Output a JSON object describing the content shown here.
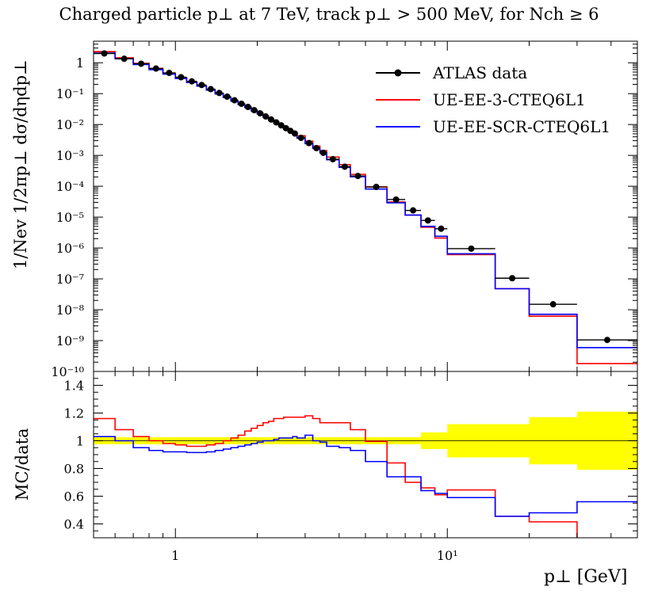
{
  "title": "Charged particle p⊥ at 7 TeV, track p⊥ > 500 MeV, for Nch ≥ 6",
  "chart_data": [
    {
      "type": "line",
      "panel": "main",
      "xscale": "log",
      "yscale": "log",
      "xlim": [
        0.5,
        50
      ],
      "ylim": [
        1e-10,
        5
      ],
      "ylabel": "1/Nev 1/2πp⊥ dσ/dηdp⊥",
      "ytick_labels": [
        "1",
        "10⁻¹",
        "10⁻²",
        "10⁻³",
        "10⁻⁴",
        "10⁻⁵",
        "10⁻⁶",
        "10⁻⁷",
        "10⁻⁸",
        "10⁻⁹",
        "10⁻¹⁰"
      ],
      "legend_position": "top-right",
      "bin_edges": [
        0.5,
        0.6,
        0.7,
        0.8,
        0.9,
        1.0,
        1.1,
        1.2,
        1.3,
        1.4,
        1.5,
        1.6,
        1.7,
        1.8,
        1.9,
        2.0,
        2.1,
        2.2,
        2.3,
        2.4,
        2.5,
        2.6,
        2.7,
        2.8,
        3.0,
        3.2,
        3.4,
        3.6,
        4.0,
        4.4,
        5.0,
        6.0,
        7.0,
        8.0,
        9.0,
        10.0,
        15.0,
        20.0,
        30.0,
        50.0
      ],
      "series": [
        {
          "name": "ATLAS data",
          "color": "#000000",
          "style": "points",
          "values": [
            2.0,
            1.35,
            0.93,
            0.65,
            0.47,
            0.34,
            0.25,
            0.19,
            0.14,
            0.105,
            0.08,
            0.061,
            0.047,
            0.037,
            0.029,
            0.023,
            0.0182,
            0.0145,
            0.0117,
            0.0094,
            0.0076,
            0.0062,
            0.0051,
            0.0037,
            0.0025,
            0.00172,
            0.00121,
            0.00075,
            0.00043,
            0.000215,
            9.5e-05,
            3.7e-05,
            1.65e-05,
            7.8e-06,
            4.2e-06,
            9.5e-07,
            1.05e-07,
            1.5e-08,
            1.05e-09
          ]
        },
        {
          "name": "UE-EE-3-CTEQ6L1",
          "color": "#ff0000",
          "style": "step",
          "values": [
            2.3,
            1.45,
            0.96,
            0.66,
            0.46,
            0.33,
            0.24,
            0.18,
            0.135,
            0.101,
            0.077,
            0.059,
            0.046,
            0.037,
            0.029,
            0.0235,
            0.0187,
            0.0151,
            0.0123,
            0.01,
            0.0082,
            0.0067,
            0.0056,
            0.0043,
            0.0029,
            0.002,
            0.00142,
            0.00088,
            0.0005,
            0.000243,
            9.45e-05,
            3.09e-05,
            1.16e-05,
            4.7e-06,
            2.1e-06,
            6.1e-07,
            4.8e-08,
            6.2e-09,
            1.8e-10
          ]
        },
        {
          "name": "UE-EE-SCR-CTEQ6L1",
          "color": "#0000ff",
          "style": "step",
          "values": [
            2.06,
            1.35,
            0.88,
            0.6,
            0.43,
            0.31,
            0.23,
            0.175,
            0.13,
            0.098,
            0.075,
            0.057,
            0.044,
            0.035,
            0.0275,
            0.022,
            0.0174,
            0.0139,
            0.0112,
            0.009,
            0.0073,
            0.0059,
            0.0049,
            0.0036,
            0.0024,
            0.00167,
            0.0012,
            0.00072,
            0.00041,
            0.000203,
            8.1e-05,
            2.9e-05,
            1.16e-05,
            5e-06,
            2.4e-06,
            6.5e-07,
            4.8e-08,
            7.1e-09,
            5.9e-10
          ]
        }
      ]
    },
    {
      "type": "line",
      "panel": "ratio",
      "xscale": "log",
      "xlim": [
        0.5,
        50
      ],
      "ylim": [
        0.3,
        1.5
      ],
      "xlabel": "p⊥   [GeV]",
      "ylabel": "MC/data",
      "xtick_labels": [
        "1",
        "10¹"
      ],
      "ytick_labels": [
        "0.4",
        "0.6",
        "0.8",
        "1",
        "1.2",
        "1.4"
      ],
      "band_name": "data uncertainty",
      "band_color": "#ffff00",
      "band_halfwidth": [
        0.025,
        0.025,
        0.025,
        0.025,
        0.025,
        0.025,
        0.025,
        0.025,
        0.025,
        0.025,
        0.025,
        0.025,
        0.025,
        0.025,
        0.025,
        0.025,
        0.025,
        0.025,
        0.025,
        0.025,
        0.025,
        0.025,
        0.025,
        0.025,
        0.025,
        0.025,
        0.025,
        0.025,
        0.025,
        0.025,
        0.025,
        0.025,
        0.025,
        0.06,
        0.06,
        0.12,
        0.12,
        0.17,
        0.21
      ],
      "series": [
        {
          "name": "UE-EE-3-CTEQ6L1",
          "color": "#ff0000",
          "values": [
            1.16,
            1.08,
            1.03,
            1.0,
            0.98,
            0.97,
            0.96,
            0.96,
            0.97,
            0.98,
            1.0,
            1.02,
            1.04,
            1.07,
            1.09,
            1.11,
            1.13,
            1.14,
            1.16,
            1.16,
            1.17,
            1.17,
            1.17,
            1.17,
            1.18,
            1.16,
            1.13,
            1.13,
            1.13,
            1.08,
            0.995,
            0.84,
            0.7,
            0.66,
            0.61,
            0.645,
            0.455,
            0.415,
            0.195
          ]
        },
        {
          "name": "UE-EE-SCR-CTEQ6L1",
          "color": "#0000ff",
          "values": [
            1.03,
            1.0,
            0.95,
            0.93,
            0.92,
            0.92,
            0.915,
            0.915,
            0.92,
            0.93,
            0.94,
            0.95,
            0.96,
            0.97,
            0.98,
            0.99,
            1.0,
            1.0,
            1.01,
            1.02,
            1.02,
            1.02,
            1.03,
            1.02,
            1.04,
            1.0,
            0.99,
            0.96,
            0.95,
            0.93,
            0.85,
            0.74,
            0.74,
            0.64,
            0.62,
            0.59,
            0.455,
            0.48,
            0.56
          ]
        }
      ]
    }
  ]
}
